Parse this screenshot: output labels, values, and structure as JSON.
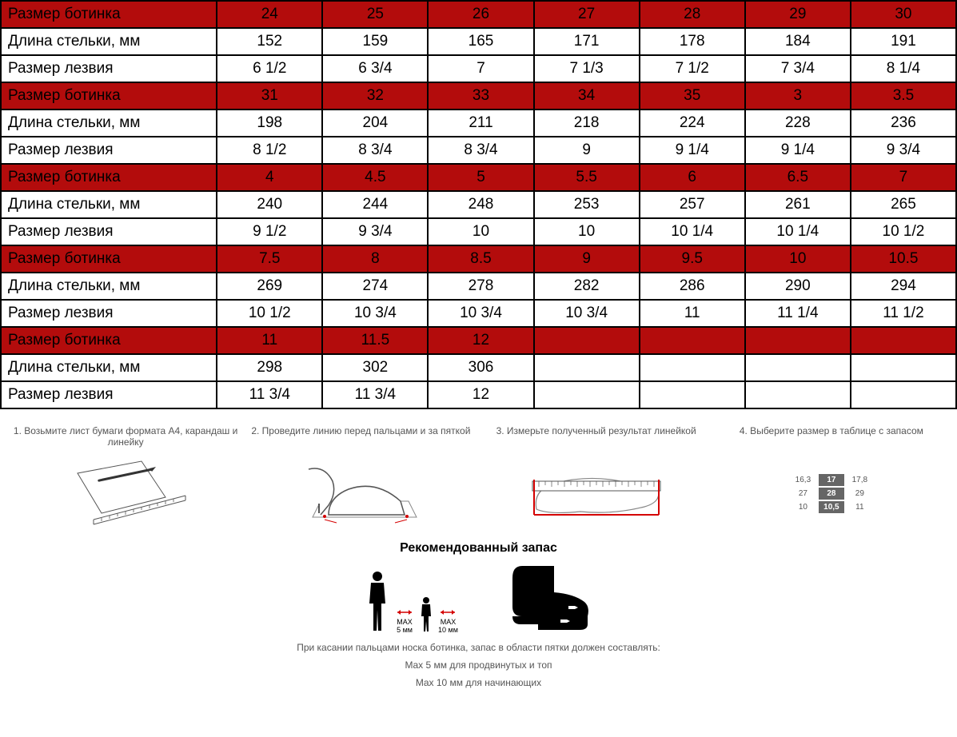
{
  "table": {
    "label_shoe": "Размер ботинка",
    "label_insole": "Длина стельки, мм",
    "label_blade": "Размер лезвия",
    "groups": [
      {
        "shoe": [
          "24",
          "25",
          "26",
          "27",
          "28",
          "29",
          "30"
        ],
        "insole": [
          "152",
          "159",
          "165",
          "171",
          "178",
          "184",
          "191"
        ],
        "blade": [
          "6 1/2",
          "6 3/4",
          "7",
          "7 1/3",
          "7 1/2",
          "7 3/4",
          "8 1/4"
        ]
      },
      {
        "shoe": [
          "31",
          "32",
          "33",
          "34",
          "35",
          "3",
          "3.5"
        ],
        "insole": [
          "198",
          "204",
          "211",
          "218",
          "224",
          "228",
          "236"
        ],
        "blade": [
          "8 1/2",
          "8 3/4",
          "8 3/4",
          "9",
          "9 1/4",
          "9 1/4",
          "9 3/4"
        ]
      },
      {
        "shoe": [
          "4",
          "4.5",
          "5",
          "5.5",
          "6",
          "6.5",
          "7"
        ],
        "insole": [
          "240",
          "244",
          "248",
          "253",
          "257",
          "261",
          "265"
        ],
        "blade": [
          "9 1/2",
          "9 3/4",
          "10",
          "10",
          "10 1/4",
          "10 1/4",
          "10 1/2"
        ]
      },
      {
        "shoe": [
          "7.5",
          "8",
          "8.5",
          "9",
          "9.5",
          "10",
          "10.5"
        ],
        "insole": [
          "269",
          "274",
          "278",
          "282",
          "286",
          "290",
          "294"
        ],
        "blade": [
          "10 1/2",
          "10 3/4",
          "10 3/4",
          "10 3/4",
          "11",
          "11 1/4",
          "11 1/2"
        ]
      },
      {
        "shoe": [
          "11",
          "11.5",
          "12",
          "",
          "",
          "",
          ""
        ],
        "insole": [
          "298",
          "302",
          "306",
          "",
          "",
          "",
          ""
        ],
        "blade": [
          "11 3/4",
          "11 3/4",
          "12",
          "",
          "",
          "",
          ""
        ]
      }
    ]
  },
  "steps": {
    "s1": "1. Возьмите лист бумаги формата А4, карандаш и линейку",
    "s2": "2. Проведите линию перед пальцами и за пяткой",
    "s3": "3. Измерьте полученный результат линейкой",
    "s4": "4. Выберите размер в таблице с запасом"
  },
  "mini_table": {
    "r1": [
      "16,3",
      "17",
      "17,8"
    ],
    "r2": [
      "27",
      "28",
      "29"
    ],
    "r3": [
      "10",
      "10,5",
      "11"
    ]
  },
  "recommendation": {
    "title": "Рекомендованный запас",
    "adult_label_top": "MAX",
    "adult_label_bottom": "5 мм",
    "child_label_top": "MAX",
    "child_label_bottom": "10 мм",
    "line1": "При касании пальцами носка ботинка, запас в области пятки должен составлять:",
    "line2": "Max 5 мм для продвинутых и топ",
    "line3": "Max 10 мм для начинающих"
  },
  "colors": {
    "header_bg": "#b30c0c",
    "border": "#000000",
    "accent_red": "#d40000"
  }
}
